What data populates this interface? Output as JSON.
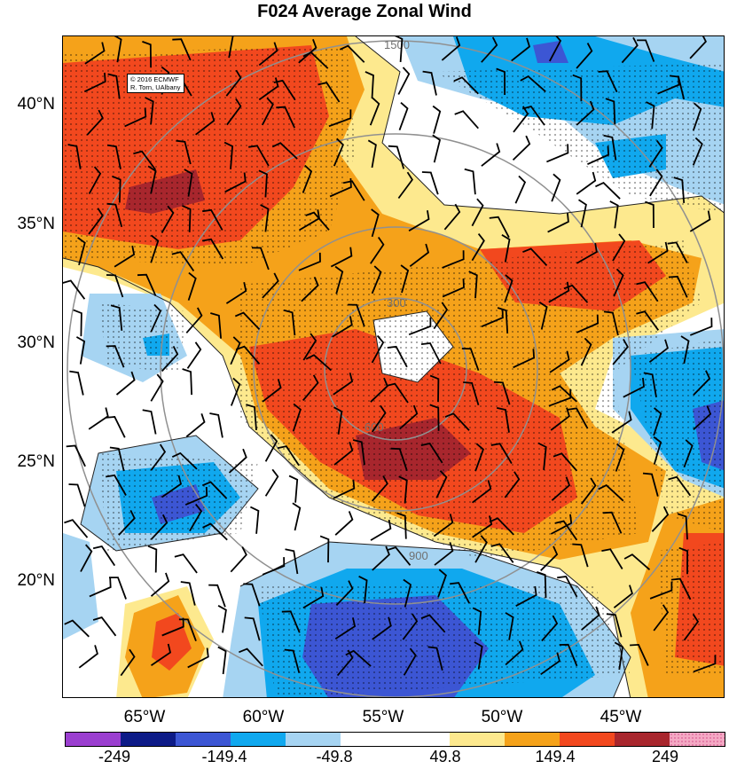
{
  "title": "F024 Average Zonal Wind",
  "credit": {
    "line1": "© 2016 ECMWF",
    "line2": "R. Torn, UAlbany"
  },
  "lat_labels": [
    "40°N",
    "35°N",
    "30°N",
    "25°N",
    "20°N"
  ],
  "lon_labels": [
    "65°W",
    "60°W",
    "55°W",
    "50°W",
    "45°W"
  ],
  "range_ring_labels": [
    "300",
    "600",
    "900",
    "1500"
  ],
  "colorbar": {
    "colors": [
      "#9b3fd0",
      "#0d1b87",
      "#3c56d4",
      "#10a8ee",
      "#a6d4f2",
      "#ffffff",
      "#ffffff",
      "#fde98e",
      "#f5a21a",
      "#f2481e",
      "#a8262d",
      "#f4a9c4"
    ],
    "labels": [
      "-249",
      "-149.4",
      "-49.8",
      "49.8",
      "149.4",
      "249"
    ]
  },
  "colors": {
    "dark_red": "#a8262d",
    "red": "#f2481e",
    "orange": "#f5a21a",
    "yellow": "#fde98e",
    "light_blue": "#a6d4f2",
    "blue": "#10a8ee",
    "dark_blue": "#3c56d4"
  }
}
